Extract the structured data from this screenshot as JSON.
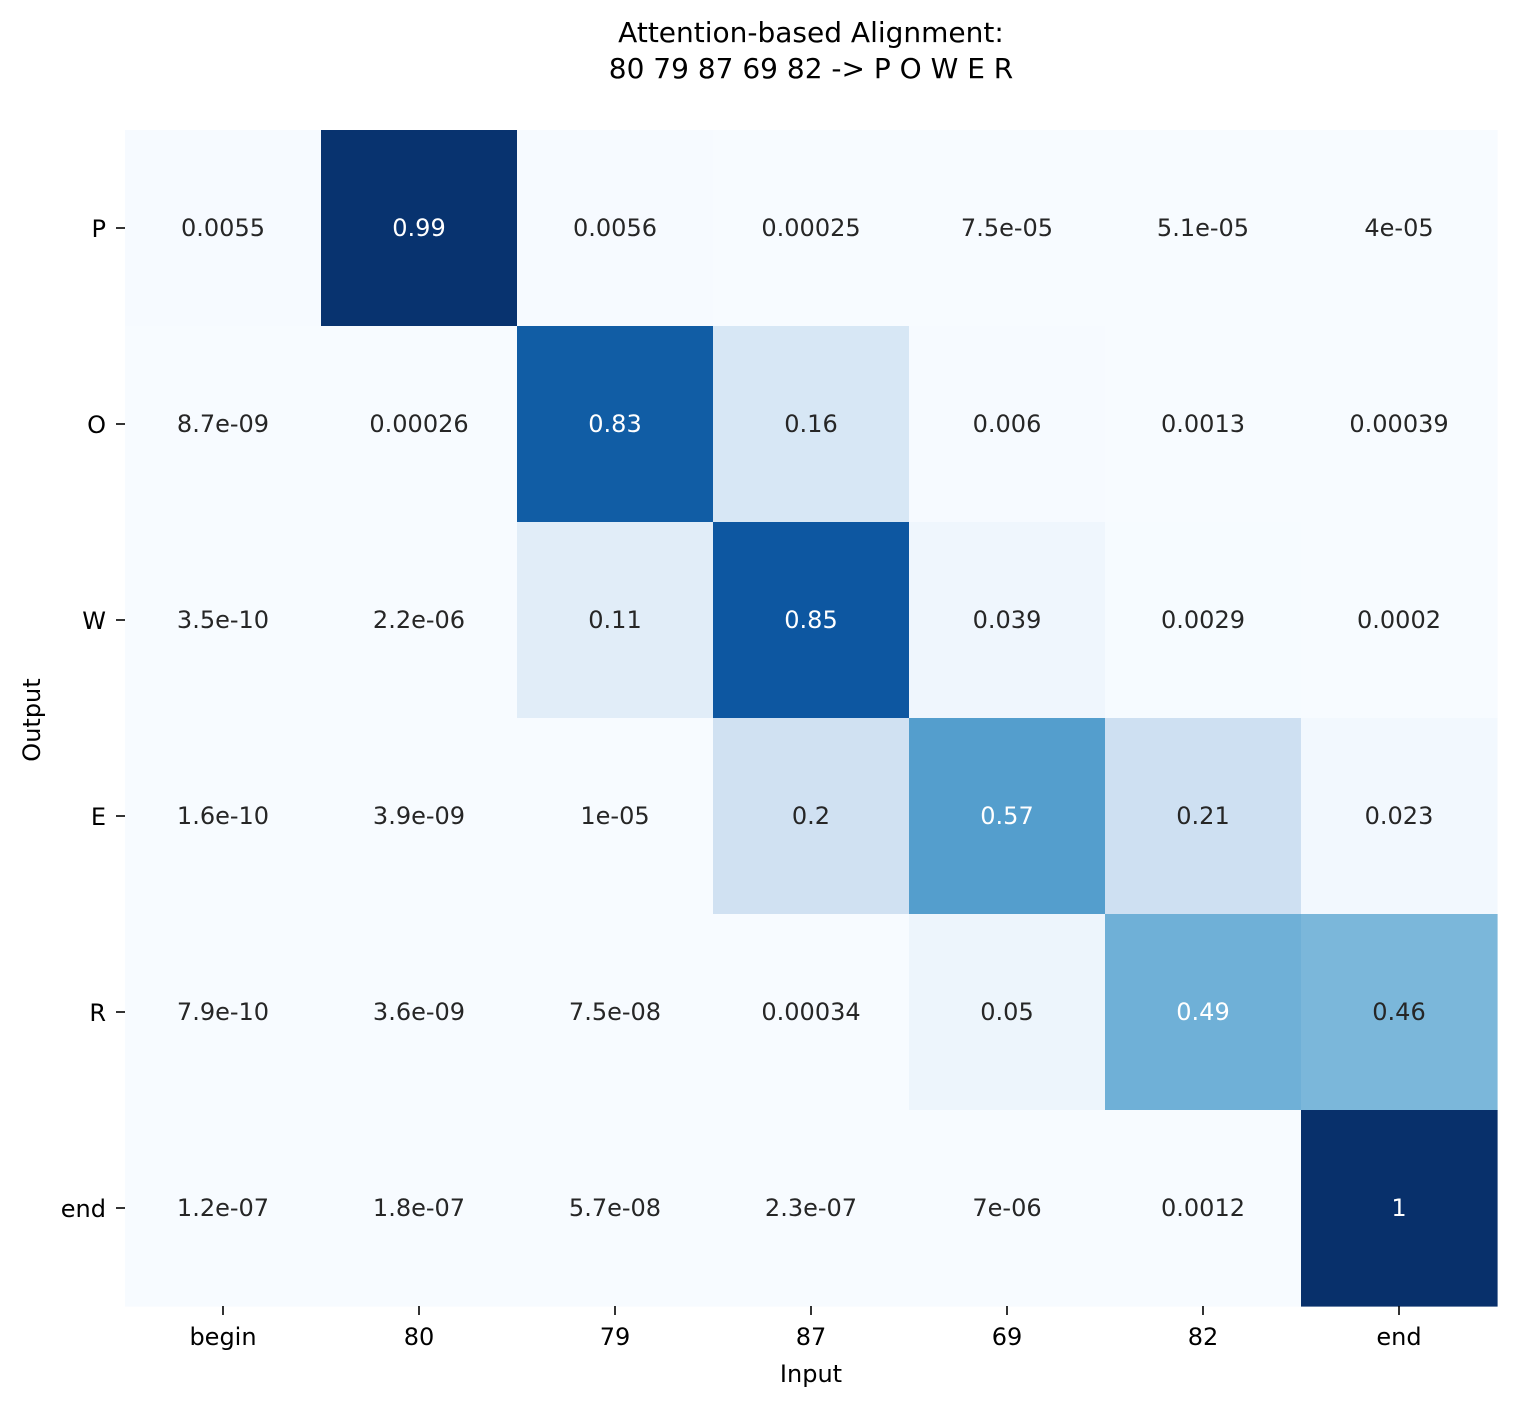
{
  "chart_data": {
    "type": "heatmap",
    "title_lines": [
      "Attention-based Alignment:",
      "80 79 87 69 82 -> P O W E R"
    ],
    "xlabel": "Input",
    "ylabel": "Output",
    "x_categories": [
      "begin",
      "80",
      "79",
      "87",
      "69",
      "82",
      "end"
    ],
    "y_categories": [
      "P",
      "O",
      "W",
      "E",
      "R",
      "end"
    ],
    "colormap": "Blues",
    "vmin": 0,
    "vmax": 1,
    "grid": false,
    "values": [
      [
        0.0055,
        0.99,
        0.0056,
        0.00025,
        7.5e-05,
        5.1e-05,
        4e-05
      ],
      [
        8.7e-09,
        0.00026,
        0.83,
        0.16,
        0.006,
        0.0013,
        0.00039
      ],
      [
        3.5e-10,
        2.2e-06,
        0.11,
        0.85,
        0.039,
        0.0029,
        0.0002
      ],
      [
        1.6e-10,
        3.9e-09,
        1e-05,
        0.2,
        0.57,
        0.21,
        0.023
      ],
      [
        7.9e-10,
        3.6e-09,
        7.5e-08,
        0.00034,
        0.05,
        0.49,
        0.46
      ],
      [
        1.2e-07,
        1.8e-07,
        5.7e-08,
        2.3e-07,
        7e-06,
        0.0012,
        1
      ]
    ],
    "annotations": [
      [
        "0.0055",
        "0.99",
        "0.0056",
        "0.00025",
        "7.5e-05",
        "5.1e-05",
        "4e-05"
      ],
      [
        "8.7e-09",
        "0.00026",
        "0.83",
        "0.16",
        "0.006",
        "0.0013",
        "0.00039"
      ],
      [
        "3.5e-10",
        "2.2e-06",
        "0.11",
        "0.85",
        "0.039",
        "0.0029",
        "0.0002"
      ],
      [
        "1.6e-10",
        "3.9e-09",
        "1e-05",
        "0.2",
        "0.57",
        "0.21",
        "0.023"
      ],
      [
        "7.9e-10",
        "3.6e-09",
        "7.5e-08",
        "0.00034",
        "0.05",
        "0.49",
        "0.46"
      ],
      [
        "1.2e-07",
        "1.8e-07",
        "5.7e-08",
        "2.3e-07",
        "7e-06",
        "0.0012",
        "1"
      ]
    ],
    "label_colors": {
      "dark_text": "#262626",
      "light_text": "#ffffff"
    }
  }
}
